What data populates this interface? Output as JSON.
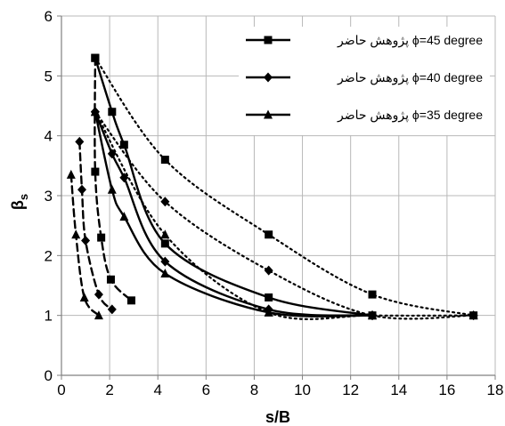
{
  "chart_data": {
    "type": "line",
    "xlabel": "s/B",
    "ylabel": "β",
    "ylabel_subscript": "s",
    "xlim": [
      0,
      18
    ],
    "ylim": [
      0,
      6
    ],
    "xticks": [
      0,
      2,
      4,
      6,
      8,
      10,
      12,
      14,
      16,
      18
    ],
    "yticks": [
      0,
      1,
      2,
      3,
      4,
      5,
      6
    ],
    "grid": true,
    "legend_position": "top-right",
    "series": [
      {
        "name": "پژوهش حاضر ϕ=45 degree",
        "marker": "square",
        "line": "solid",
        "x": [
          1.4,
          2.1,
          2.6,
          4.3,
          8.6,
          12.9
        ],
        "y": [
          5.3,
          4.4,
          3.85,
          2.2,
          1.3,
          1.0
        ]
      },
      {
        "name": "پژوهش حاضر ϕ=40 degree",
        "marker": "diamond",
        "line": "solid",
        "x": [
          1.4,
          2.1,
          2.6,
          4.3,
          8.6,
          12.9
        ],
        "y": [
          4.4,
          3.7,
          3.3,
          1.9,
          1.1,
          1.0
        ]
      },
      {
        "name": "پژوهش حاضر ϕ=35 degree",
        "marker": "triangle",
        "line": "solid",
        "x": [
          1.4,
          2.1,
          2.6,
          4.3,
          8.6,
          12.9
        ],
        "y": [
          4.4,
          3.1,
          2.65,
          1.7,
          1.05,
          1.0
        ]
      },
      {
        "name": "",
        "marker": "square",
        "line": "dotted",
        "x": [
          1.4,
          4.3,
          8.6,
          12.9,
          17.1
        ],
        "y": [
          5.3,
          3.6,
          2.35,
          1.35,
          1.0
        ]
      },
      {
        "name": "",
        "marker": "diamond",
        "line": "dotted",
        "x": [
          1.4,
          4.3,
          8.6,
          12.9,
          17.1
        ],
        "y": [
          4.4,
          2.9,
          1.75,
          1.0,
          1.0
        ]
      },
      {
        "name": "",
        "marker": "triangle",
        "line": "dotted",
        "x": [
          1.4,
          4.3,
          8.6,
          12.9,
          17.1
        ],
        "y": [
          4.4,
          2.35,
          1.05,
          1.0,
          1.0
        ]
      },
      {
        "name": "",
        "marker": "square",
        "line": "dashed",
        "x": [
          1.4,
          1.4,
          1.65,
          2.05,
          2.9
        ],
        "y": [
          5.3,
          3.4,
          2.3,
          1.6,
          1.25
        ]
      },
      {
        "name": "",
        "marker": "diamond",
        "line": "dashed",
        "x": [
          0.75,
          0.85,
          1.0,
          1.55,
          2.1
        ],
        "y": [
          3.9,
          3.1,
          2.25,
          1.35,
          1.1
        ]
      },
      {
        "name": "",
        "marker": "triangle",
        "line": "dashed",
        "x": [
          0.4,
          0.6,
          0.95,
          1.55
        ],
        "y": [
          3.35,
          2.35,
          1.3,
          1.0
        ]
      }
    ]
  }
}
